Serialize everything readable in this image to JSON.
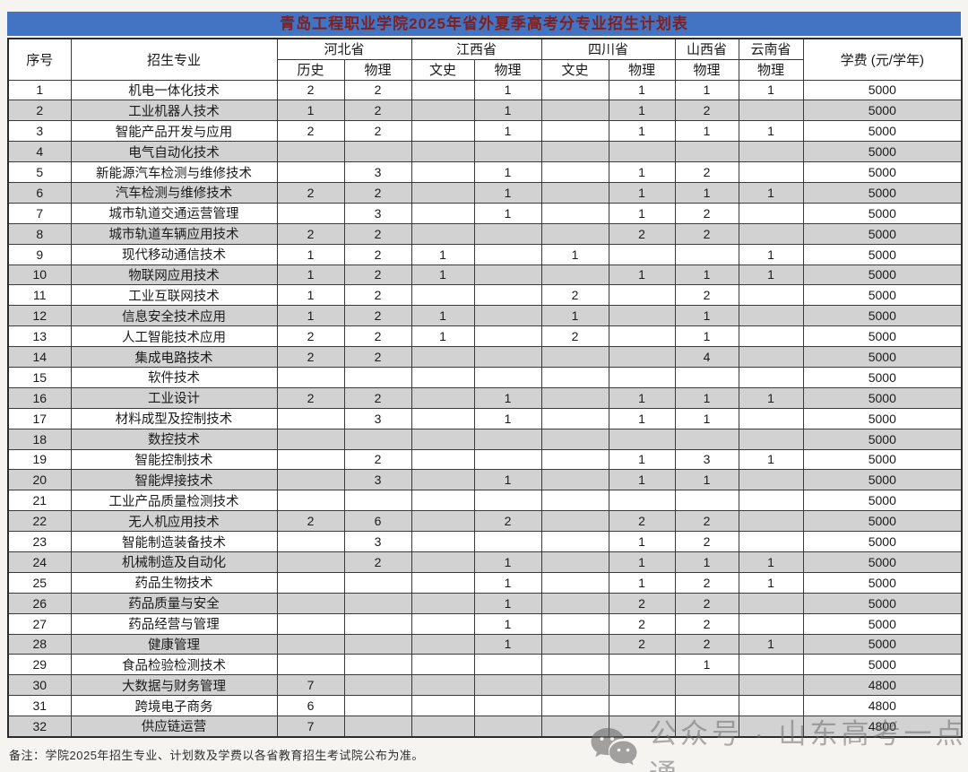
{
  "title": "青岛工程职业学院2025年省外夏季高考分专业招生计划表",
  "header": {
    "no_label": "序号",
    "major_label": "招生专业",
    "provinces": [
      {
        "name": "河北省",
        "subs": [
          "历史",
          "物理"
        ]
      },
      {
        "name": "江西省",
        "subs": [
          "文史",
          "物理"
        ]
      },
      {
        "name": "四川省",
        "subs": [
          "文史",
          "物理"
        ]
      },
      {
        "name": "山西省",
        "subs": [
          "物理"
        ]
      },
      {
        "name": "云南省",
        "subs": [
          "物理"
        ]
      }
    ],
    "tuition_label": "学费 (元/学年)"
  },
  "rows": [
    {
      "no": "1",
      "major": "机电一体化技术",
      "vals": [
        "2",
        "2",
        "",
        "1",
        "",
        "1",
        "1",
        "1"
      ],
      "tuition": "5000"
    },
    {
      "no": "2",
      "major": "工业机器人技术",
      "vals": [
        "1",
        "2",
        "",
        "1",
        "",
        "1",
        "2",
        ""
      ],
      "tuition": "5000"
    },
    {
      "no": "3",
      "major": "智能产品开发与应用",
      "vals": [
        "2",
        "2",
        "",
        "1",
        "",
        "1",
        "1",
        "1"
      ],
      "tuition": "5000"
    },
    {
      "no": "4",
      "major": "电气自动化技术",
      "vals": [
        "",
        "",
        "",
        "",
        "",
        "",
        "",
        ""
      ],
      "tuition": "5000"
    },
    {
      "no": "5",
      "major": "新能源汽车检测与维修技术",
      "vals": [
        "",
        "3",
        "",
        "1",
        "",
        "1",
        "2",
        ""
      ],
      "tuition": "5000"
    },
    {
      "no": "6",
      "major": "汽车检测与维修技术",
      "vals": [
        "2",
        "2",
        "",
        "1",
        "",
        "1",
        "1",
        "1"
      ],
      "tuition": "5000"
    },
    {
      "no": "7",
      "major": "城市轨道交通运营管理",
      "vals": [
        "",
        "3",
        "",
        "1",
        "",
        "1",
        "2",
        ""
      ],
      "tuition": "5000"
    },
    {
      "no": "8",
      "major": "城市轨道车辆应用技术",
      "vals": [
        "2",
        "2",
        "",
        "",
        "",
        "2",
        "2",
        ""
      ],
      "tuition": "5000"
    },
    {
      "no": "9",
      "major": "现代移动通信技术",
      "vals": [
        "1",
        "2",
        "1",
        "",
        "1",
        "",
        "",
        "1"
      ],
      "tuition": "5000"
    },
    {
      "no": "10",
      "major": "物联网应用技术",
      "vals": [
        "1",
        "2",
        "1",
        "",
        "",
        "1",
        "1",
        "1"
      ],
      "tuition": "5000"
    },
    {
      "no": "11",
      "major": "工业互联网技术",
      "vals": [
        "1",
        "2",
        "",
        "",
        "2",
        "",
        "2",
        ""
      ],
      "tuition": "5000"
    },
    {
      "no": "12",
      "major": "信息安全技术应用",
      "vals": [
        "1",
        "2",
        "1",
        "",
        "1",
        "",
        "1",
        ""
      ],
      "tuition": "5000"
    },
    {
      "no": "13",
      "major": "人工智能技术应用",
      "vals": [
        "2",
        "2",
        "1",
        "",
        "2",
        "",
        "1",
        ""
      ],
      "tuition": "5000"
    },
    {
      "no": "14",
      "major": "集成电路技术",
      "vals": [
        "2",
        "2",
        "",
        "",
        "",
        "",
        "4",
        ""
      ],
      "tuition": "5000"
    },
    {
      "no": "15",
      "major": "软件技术",
      "vals": [
        "",
        "",
        "",
        "",
        "",
        "",
        "",
        ""
      ],
      "tuition": "5000"
    },
    {
      "no": "16",
      "major": "工业设计",
      "vals": [
        "2",
        "2",
        "",
        "1",
        "",
        "1",
        "1",
        "1"
      ],
      "tuition": "5000"
    },
    {
      "no": "17",
      "major": "材料成型及控制技术",
      "vals": [
        "",
        "3",
        "",
        "1",
        "",
        "1",
        "1",
        ""
      ],
      "tuition": "5000"
    },
    {
      "no": "18",
      "major": "数控技术",
      "vals": [
        "",
        "",
        "",
        "",
        "",
        "",
        "",
        ""
      ],
      "tuition": "5000"
    },
    {
      "no": "19",
      "major": "智能控制技术",
      "vals": [
        "",
        "2",
        "",
        "",
        "",
        "1",
        "3",
        "1"
      ],
      "tuition": "5000"
    },
    {
      "no": "20",
      "major": "智能焊接技术",
      "vals": [
        "",
        "3",
        "",
        "1",
        "",
        "1",
        "1",
        ""
      ],
      "tuition": "5000"
    },
    {
      "no": "21",
      "major": "工业产品质量检测技术",
      "vals": [
        "",
        "",
        "",
        "",
        "",
        "",
        "",
        ""
      ],
      "tuition": "5000"
    },
    {
      "no": "22",
      "major": "无人机应用技术",
      "vals": [
        "2",
        "6",
        "",
        "2",
        "",
        "2",
        "2",
        ""
      ],
      "tuition": "5000"
    },
    {
      "no": "23",
      "major": "智能制造装备技术",
      "vals": [
        "",
        "3",
        "",
        "",
        "",
        "1",
        "2",
        ""
      ],
      "tuition": "5000"
    },
    {
      "no": "24",
      "major": "机械制造及自动化",
      "vals": [
        "",
        "2",
        "",
        "1",
        "",
        "1",
        "1",
        "1"
      ],
      "tuition": "5000"
    },
    {
      "no": "25",
      "major": "药品生物技术",
      "vals": [
        "",
        "",
        "",
        "1",
        "",
        "1",
        "2",
        "1"
      ],
      "tuition": "5000"
    },
    {
      "no": "26",
      "major": "药品质量与安全",
      "vals": [
        "",
        "",
        "",
        "1",
        "",
        "2",
        "2",
        ""
      ],
      "tuition": "5000"
    },
    {
      "no": "27",
      "major": "药品经营与管理",
      "vals": [
        "",
        "",
        "",
        "1",
        "",
        "2",
        "2",
        ""
      ],
      "tuition": "5000"
    },
    {
      "no": "28",
      "major": "健康管理",
      "vals": [
        "",
        "",
        "",
        "1",
        "",
        "2",
        "2",
        "1"
      ],
      "tuition": "5000"
    },
    {
      "no": "29",
      "major": "食品检验检测技术",
      "vals": [
        "",
        "",
        "",
        "",
        "",
        "",
        "1",
        ""
      ],
      "tuition": "5000"
    },
    {
      "no": "30",
      "major": "大数据与财务管理",
      "vals": [
        "7",
        "",
        "",
        "",
        "",
        "",
        "",
        ""
      ],
      "tuition": "4800"
    },
    {
      "no": "31",
      "major": "跨境电子商务",
      "vals": [
        "6",
        "",
        "",
        "",
        "",
        "",
        "",
        ""
      ],
      "tuition": "4800"
    },
    {
      "no": "32",
      "major": "供应链运营",
      "vals": [
        "7",
        "",
        "",
        "",
        "",
        "",
        "",
        ""
      ],
      "tuition": "4800"
    }
  ],
  "note": "备注：学院2025年招生专业、计划数及学费以各省教育招生考试院公布为准。",
  "watermark": {
    "icon": "wechat-icon",
    "text": "公众号 · 山东高考一点通"
  },
  "colors": {
    "title_bg": "#4374c3",
    "title_text": "#7e2121",
    "row_alt_bg": "#d2d2d2",
    "border": "#3a3a3a",
    "watermark_gray": "#6e6e6e"
  }
}
